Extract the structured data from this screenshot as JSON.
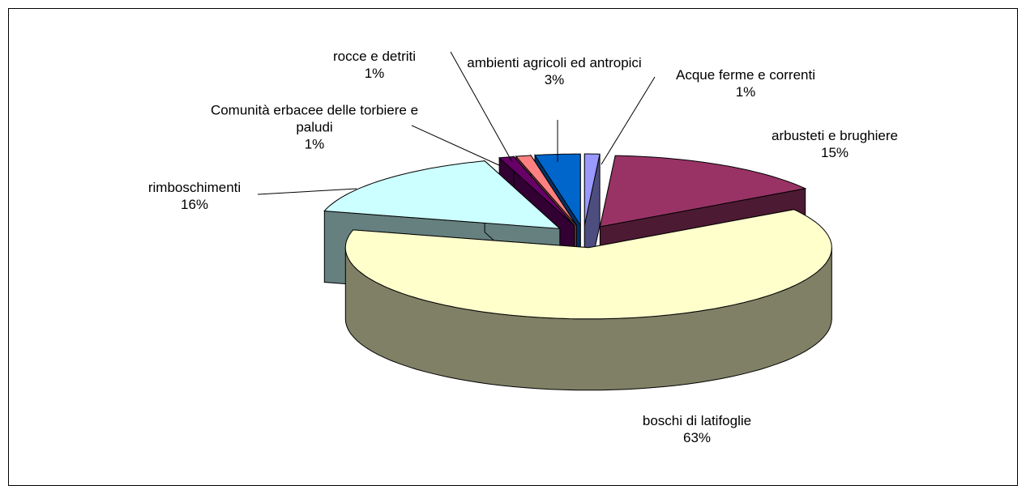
{
  "chart_data": {
    "type": "pie",
    "categories": [
      "Acque ferme e correnti",
      "arbusteti e brughiere",
      "boschi di latifoglie",
      "rimboschimenti",
      "Comunità erbacee delle torbiere e paludi",
      "rocce e detriti",
      "ambienti agricoli ed antropici"
    ],
    "values": [
      1,
      15,
      63,
      16,
      1,
      1,
      3
    ],
    "value_labels": [
      "1%",
      "15%",
      "63%",
      "16%",
      "1%",
      "1%",
      "3%"
    ],
    "colors": [
      "#9999ff",
      "#993366",
      "#ffffcc",
      "#ccffff",
      "#660066",
      "#ff8080",
      "#0066cc"
    ]
  }
}
